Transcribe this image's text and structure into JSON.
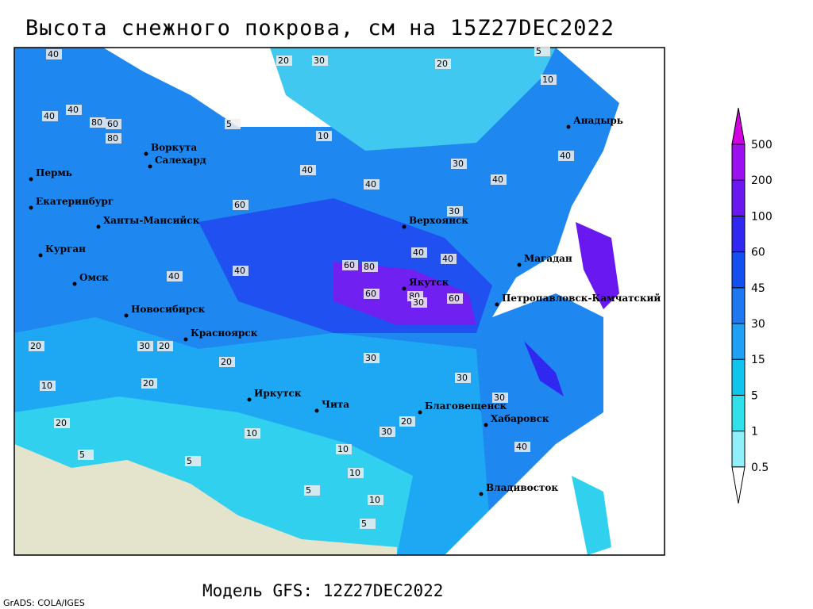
{
  "header": {
    "title": "Высота снежного покрова, см на 15Z27DEC2022"
  },
  "footer": {
    "model": "Модель GFS: 12Z27DEC2022",
    "credit": "GrADS: COLA/IGES"
  },
  "colorbar": {
    "levels": [
      0.5,
      1,
      5,
      15,
      30,
      45,
      60,
      100,
      200,
      500
    ],
    "colors": [
      "#ffffff",
      "#90f0fa",
      "#30e0ea",
      "#10c4ee",
      "#1ea0f4",
      "#1e78f0",
      "#1450f0",
      "#3028f0",
      "#6a18f0",
      "#9c10f0",
      "#d000e0"
    ]
  },
  "cities": [
    "Воркута",
    "Салехард",
    "Пермь",
    "Екатеринбург",
    "Ханты-Мансийск",
    "Курган",
    "Омск",
    "Новосибирск",
    "Красноярск",
    "Иркутск",
    "Чита",
    "Верхоянск",
    "Якутск",
    "Магадан",
    "Анадырь",
    "Петропавловск-Камчатский",
    "Благовещенск",
    "Хабаровск",
    "Владивосток"
  ],
  "contour_labels": [
    40,
    20,
    30,
    20,
    5,
    10,
    60,
    80,
    80,
    40,
    40,
    5,
    10,
    40,
    40,
    40,
    30,
    40,
    60,
    30,
    40,
    40,
    80,
    60,
    80,
    60,
    60,
    40,
    40,
    30,
    30,
    20,
    20,
    20,
    10,
    10,
    5,
    5,
    5,
    10,
    20,
    30,
    30,
    40,
    30,
    20,
    30,
    10,
    5,
    10,
    20
  ]
}
